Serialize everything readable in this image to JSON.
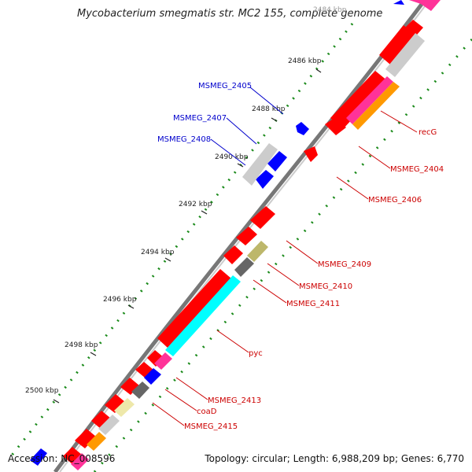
{
  "header": {
    "title": "Mycobacterium smegmatis str. MC2 155, complete genome"
  },
  "footer": {
    "accession": "Accession: NC_008596",
    "topology": "Topology: circular; Length: 6,988,209 bp; Genes: 6,770"
  },
  "ticks": [
    "2484 kbp",
    "2486 kbp",
    "2488 kbp",
    "2490 kbp",
    "2492 kbp",
    "2494 kbp",
    "2496 kbp",
    "2498 kbp",
    "2500 kbp"
  ],
  "genes_forward": [
    "MSMEG_2405",
    "MSMEG_2407",
    "MSMEG_2408"
  ],
  "genes_reverse": [
    "recG",
    "MSMEG_2404",
    "MSMEG_2406",
    "MSMEG_2409",
    "MSMEG_2410",
    "MSMEG_2411",
    "pyc",
    "MSMEG_2413",
    "coaD",
    "MSMEG_2415"
  ],
  "colors": {
    "forward_label": "#0000cc",
    "reverse_label": "#cc0000",
    "cds": "#ff0000",
    "forward_cds": "#0000ff",
    "gc_positive": "#1a8a1a",
    "backbone": "#777777"
  }
}
